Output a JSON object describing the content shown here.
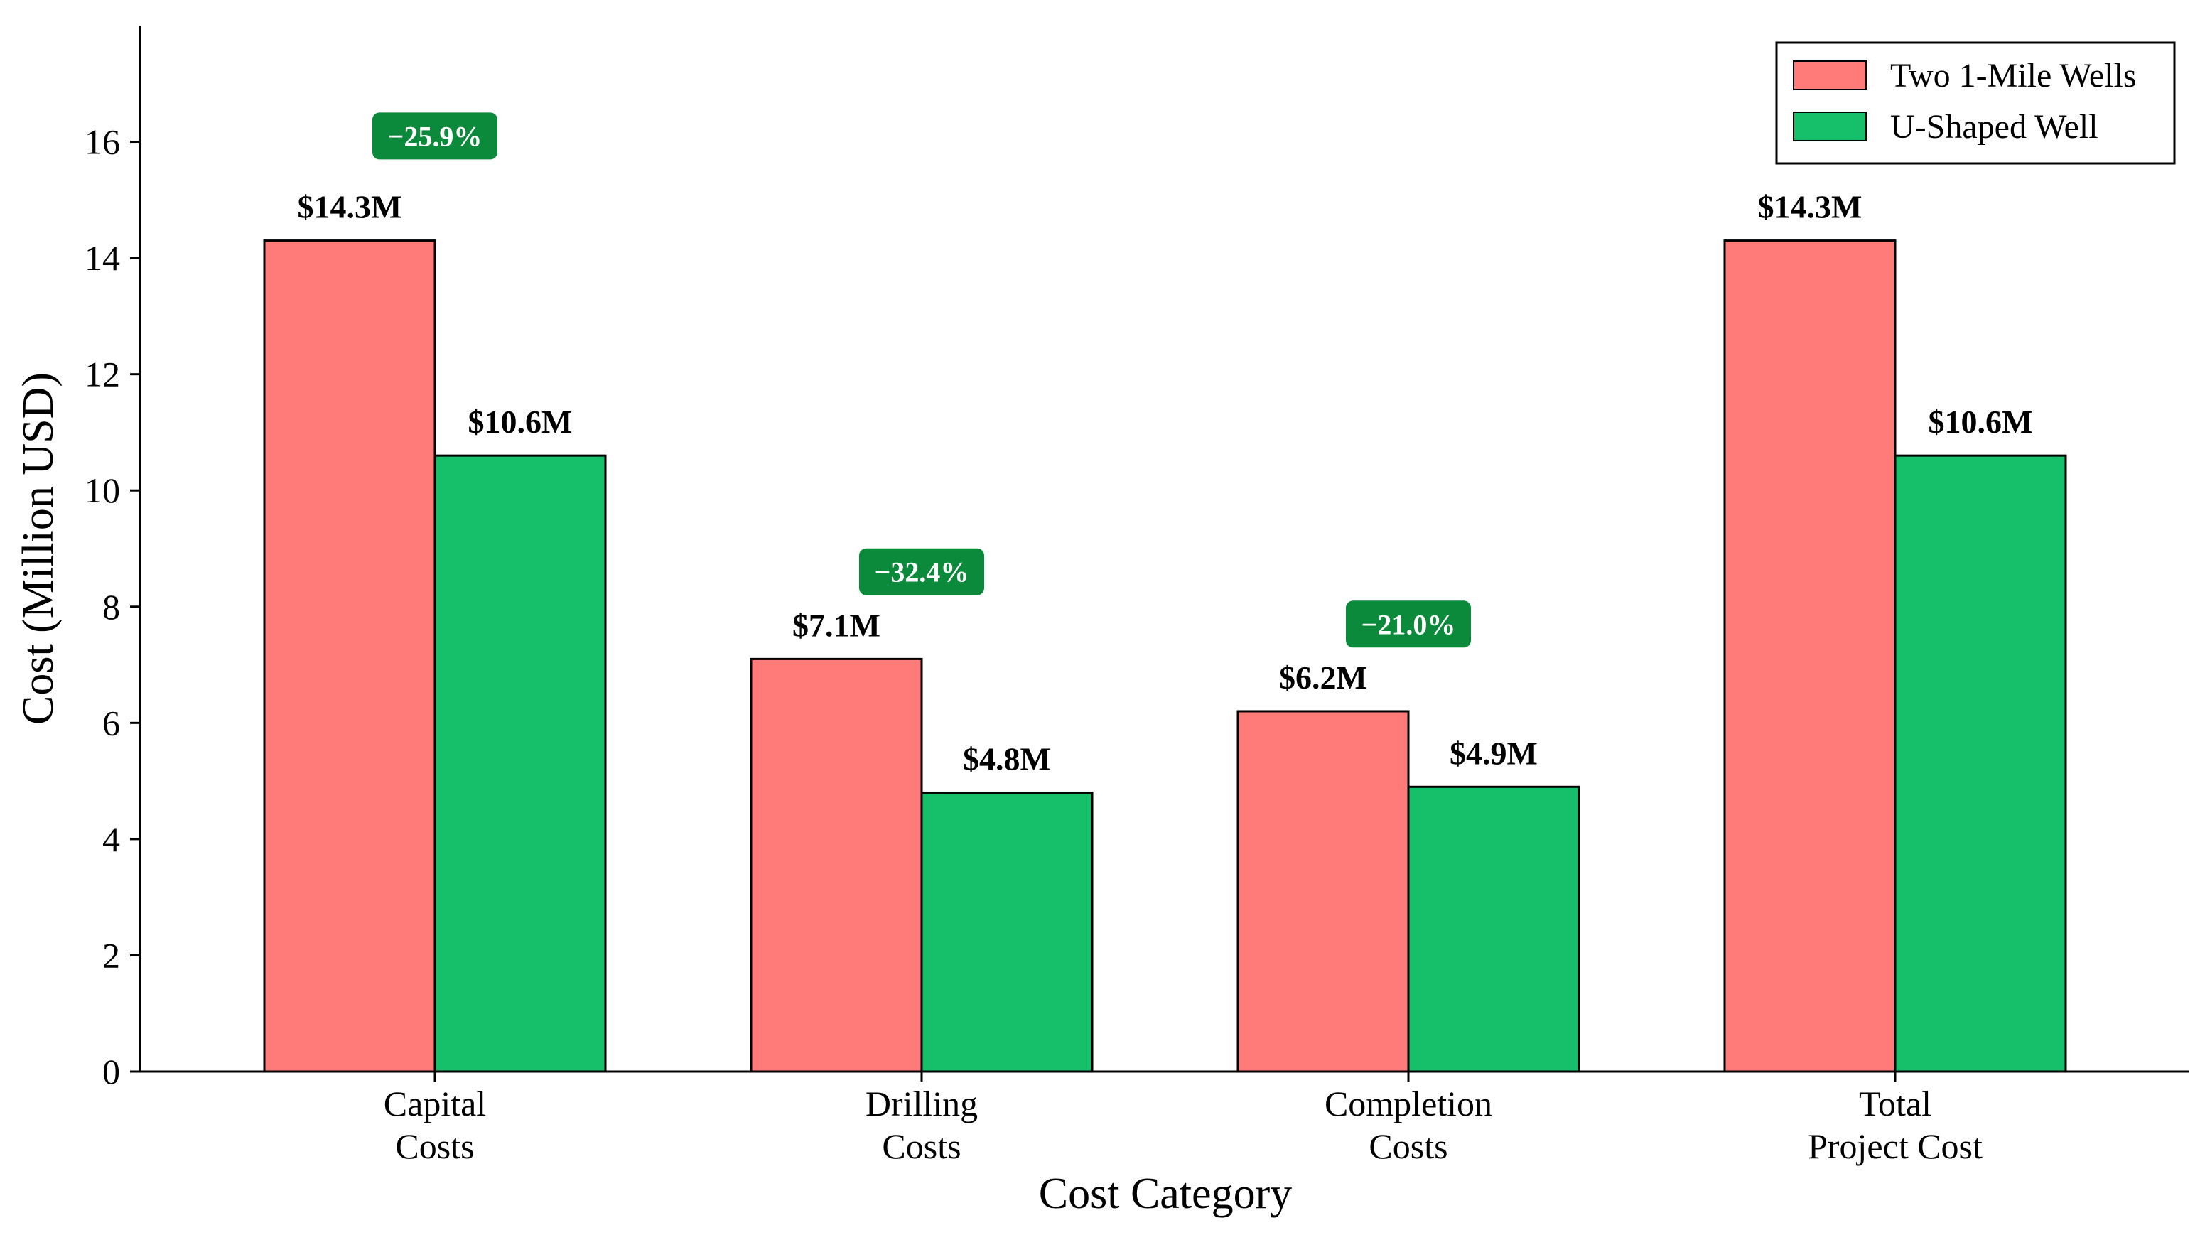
{
  "chart_data": {
    "type": "bar",
    "title": "",
    "xlabel": "Cost Category",
    "ylabel": "Cost (Million USD)",
    "ylim": [
      0,
      18
    ],
    "yticks": [
      0,
      2,
      4,
      6,
      8,
      10,
      12,
      14,
      16
    ],
    "grid": false,
    "legend_position": "top-right",
    "categories": [
      [
        "Capital",
        "Costs"
      ],
      [
        "Drilling",
        "Costs"
      ],
      [
        "Completion",
        "Costs"
      ],
      [
        "Total",
        "Project Cost"
      ]
    ],
    "series": [
      {
        "name": "Two 1-Mile Wells",
        "color": "#ff7b79",
        "values": [
          14.3,
          7.1,
          6.2,
          14.3
        ],
        "labels": [
          "$14.3M",
          "$7.1M",
          "$6.2M",
          "$14.3M"
        ]
      },
      {
        "name": "U-Shaped Well",
        "color": "#16c06b",
        "values": [
          10.6,
          4.8,
          4.9,
          10.6
        ],
        "labels": [
          "$10.6M",
          "$4.8M",
          "$4.9M",
          "$10.6M"
        ]
      }
    ],
    "annotations": [
      {
        "category_index": 0,
        "text": "−25.9%",
        "y": 16.1
      },
      {
        "category_index": 1,
        "text": "−32.4%",
        "y": 8.6
      },
      {
        "category_index": 2,
        "text": "−21.0%",
        "y": 7.7
      }
    ],
    "badge_color": "#0a8a3a"
  }
}
